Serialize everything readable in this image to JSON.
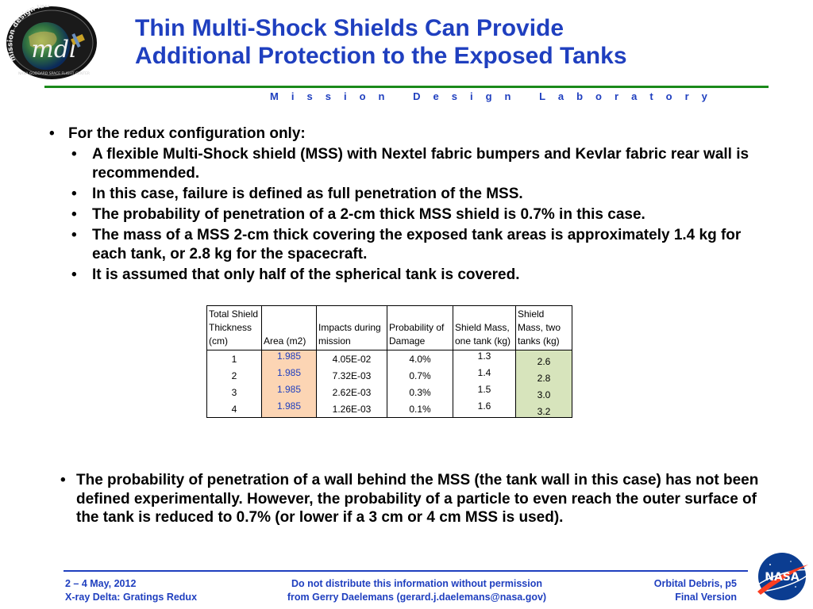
{
  "header": {
    "title_line1": "Thin Multi-Shock Shields Can Provide",
    "title_line2": "Additional Protection to the Exposed Tanks",
    "lab_name": "M i s s i o n   D e s i g n   L a b o r a t o r y"
  },
  "logo": {
    "text": "mdl",
    "ring_text": "mission design lab",
    "sub_text": "NASA GODDARD SPACE FLIGHT CENTER"
  },
  "bullets": {
    "main": "For the redux configuration only:",
    "sub": [
      " A flexible Multi-Shock shield (MSS) with Nextel fabric bumpers and Kevlar fabric rear wall is recommended.",
      "In this case, failure is defined as full penetration of the MSS.",
      "The probability of penetration of a 2-cm thick MSS shield is 0.7% in this case.",
      "The mass of a MSS 2-cm thick covering the exposed tank areas is approximately 1.4 kg for each tank, or 2.8 kg for the spacecraft.",
      "It is assumed that only half of the spherical tank is covered."
    ]
  },
  "table": {
    "headers": [
      "Total Shield Thickness (cm)",
      "Area (m2)",
      "Impacts during mission",
      "Probability of Damage",
      "Shield Mass, one tank (kg)",
      "Shield Mass, two tanks (kg)"
    ],
    "rows": [
      [
        "1",
        "1.985",
        "4.05E-02",
        "4.0%",
        "1.3",
        "2.6"
      ],
      [
        "2",
        "1.985",
        "7.32E-03",
        "0.7%",
        "1.4",
        "2.8"
      ],
      [
        "3",
        "1.985",
        "2.62E-03",
        "0.3%",
        "1.5",
        "3.0"
      ],
      [
        "4",
        "1.985",
        "1.26E-03",
        "0.1%",
        "1.6",
        "3.2"
      ]
    ]
  },
  "paragraph": "The probability of penetration of a wall behind the MSS (the tank wall in this case) has not been defined experimentally. However, the probability of a particle to even reach the outer surface of the tank is reduced to 0.7% (or lower if a 3 cm or 4 cm MSS is used).",
  "footer": {
    "left_line1": "2 – 4 May, 2012",
    "left_line2": "X-ray Delta: Gratings Redux",
    "center_line1": "Do not distribute this information without permission",
    "center_line2": "from Gerry Daelemans (gerard.j.daelemans@nasa.gov)",
    "right_line1": "Orbital Debris, p5",
    "right_line2": "Final Version",
    "nasa_text": "NASA"
  },
  "colors": {
    "title_blue": "#1f3fbf",
    "green_rule": "#1a8a1a",
    "area_fill": "#fcd5b4",
    "mass_fill": "#d7e4bc"
  }
}
